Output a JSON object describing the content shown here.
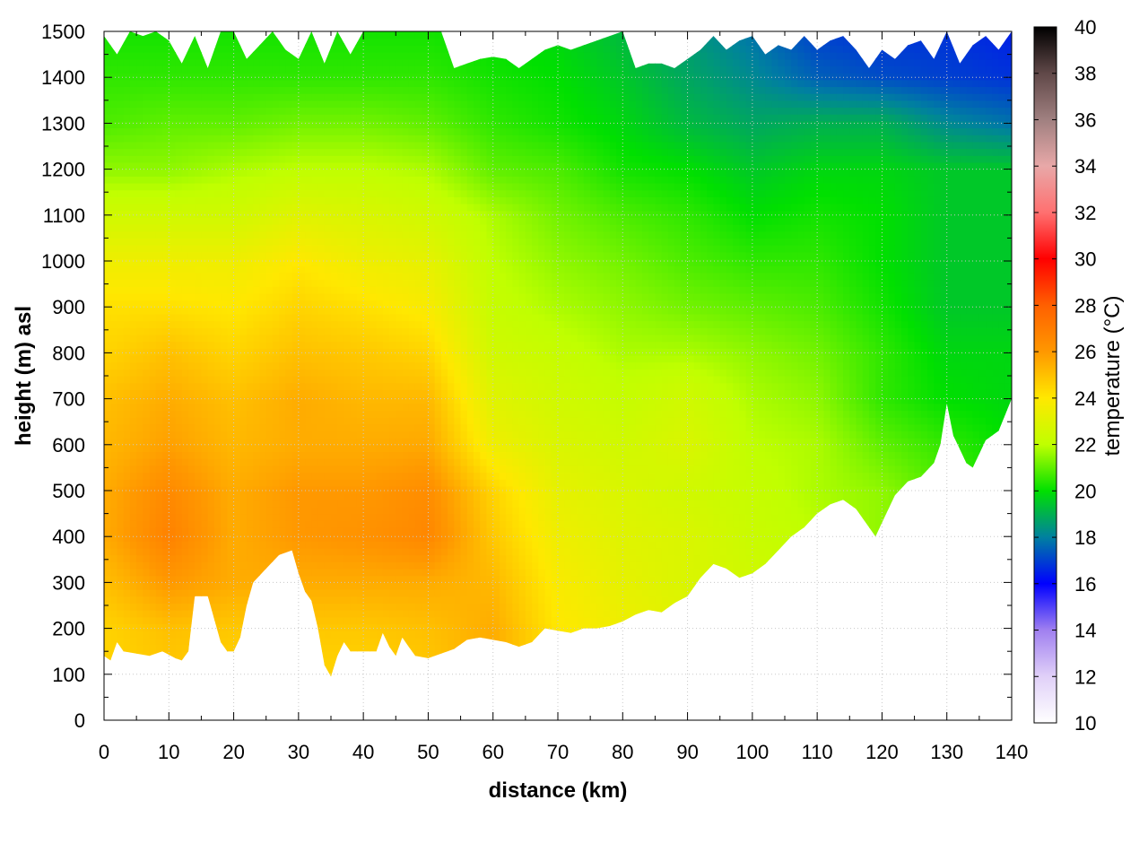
{
  "chart_data": {
    "type": "heatmap",
    "title": "",
    "xlabel": "distance (km)",
    "ylabel": "height (m) asl",
    "colorbar_label": "temperature (°C)",
    "xlim": [
      0,
      140
    ],
    "ylim": [
      0,
      1500
    ],
    "clim": [
      10,
      40
    ],
    "x_ticks": [
      "0",
      "10",
      "20",
      "30",
      "40",
      "50",
      "60",
      "70",
      "80",
      "90",
      "100",
      "110",
      "120",
      "130",
      "140"
    ],
    "y_ticks": [
      "0",
      "100",
      "200",
      "300",
      "400",
      "500",
      "600",
      "700",
      "800",
      "900",
      "1000",
      "1100",
      "1200",
      "1300",
      "1400",
      "1500"
    ],
    "c_ticks": [
      "10",
      "12",
      "14",
      "16",
      "18",
      "20",
      "22",
      "24",
      "26",
      "28",
      "30",
      "32",
      "34",
      "36",
      "38",
      "40"
    ],
    "grid": true,
    "colormap_stops": [
      {
        "value": 10,
        "color": "#ffffff"
      },
      {
        "value": 12,
        "color": "#e0d0f8"
      },
      {
        "value": 14,
        "color": "#a080f0"
      },
      {
        "value": 16,
        "color": "#0000ff"
      },
      {
        "value": 18,
        "color": "#0080a0"
      },
      {
        "value": 20,
        "color": "#00e000"
      },
      {
        "value": 22,
        "color": "#c0ff00"
      },
      {
        "value": 24,
        "color": "#ffe800"
      },
      {
        "value": 26,
        "color": "#ff9800"
      },
      {
        "value": 28,
        "color": "#ff6000"
      },
      {
        "value": 30,
        "color": "#ff0000"
      },
      {
        "value": 32,
        "color": "#ff7070"
      },
      {
        "value": 34,
        "color": "#e8a8a8"
      },
      {
        "value": 36,
        "color": "#a08080"
      },
      {
        "value": 38,
        "color": "#604848"
      },
      {
        "value": 40,
        "color": "#000000"
      }
    ],
    "ground_profile": {
      "x": [
        0,
        1,
        2,
        3,
        5,
        7,
        9,
        11,
        12,
        13,
        14,
        16,
        17,
        18,
        19,
        20,
        21,
        22,
        23,
        25,
        27,
        29,
        30,
        31,
        32,
        33,
        34,
        35,
        36,
        37,
        38,
        40,
        42,
        43,
        44,
        45,
        46,
        47,
        48,
        50,
        52,
        54,
        56,
        58,
        60,
        62,
        64,
        66,
        68,
        70,
        72,
        74,
        76,
        78,
        80,
        82,
        84,
        86,
        88,
        90,
        92,
        94,
        96,
        98,
        100,
        102,
        104,
        106,
        108,
        110,
        112,
        114,
        116,
        118,
        119,
        120,
        122,
        124,
        126,
        128,
        129,
        130,
        131,
        132,
        133,
        134,
        135,
        136,
        138,
        140
      ],
      "y": [
        140,
        130,
        170,
        150,
        145,
        140,
        150,
        135,
        130,
        150,
        270,
        270,
        220,
        170,
        150,
        150,
        180,
        250,
        300,
        330,
        360,
        370,
        320,
        280,
        260,
        200,
        120,
        95,
        140,
        170,
        150,
        150,
        150,
        190,
        160,
        140,
        180,
        160,
        140,
        135,
        145,
        155,
        175,
        180,
        175,
        170,
        160,
        170,
        200,
        195,
        190,
        200,
        200,
        205,
        215,
        230,
        240,
        235,
        255,
        270,
        310,
        340,
        330,
        310,
        320,
        340,
        370,
        400,
        420,
        450,
        470,
        480,
        460,
        420,
        400,
        430,
        490,
        520,
        530,
        560,
        600,
        690,
        620,
        590,
        560,
        550,
        580,
        610,
        630,
        700
      ]
    },
    "top_profile": {
      "x": [
        0,
        2,
        4,
        6,
        8,
        10,
        12,
        14,
        16,
        18,
        20,
        22,
        24,
        26,
        28,
        30,
        32,
        34,
        36,
        38,
        40,
        42,
        44,
        46,
        48,
        50,
        52,
        54,
        56,
        58,
        60,
        62,
        64,
        66,
        68,
        70,
        72,
        74,
        76,
        78,
        80,
        82,
        84,
        86,
        88,
        90,
        92,
        94,
        96,
        98,
        100,
        102,
        104,
        106,
        108,
        110,
        112,
        114,
        116,
        118,
        120,
        122,
        124,
        126,
        128,
        130,
        132,
        134,
        136,
        138,
        140
      ],
      "y": [
        1490,
        1450,
        1500,
        1490,
        1500,
        1480,
        1430,
        1490,
        1420,
        1500,
        1500,
        1440,
        1470,
        1500,
        1460,
        1440,
        1500,
        1430,
        1500,
        1450,
        1500,
        1500,
        1500,
        1500,
        1500,
        1500,
        1500,
        1420,
        1430,
        1440,
        1445,
        1440,
        1420,
        1440,
        1460,
        1470,
        1460,
        1470,
        1480,
        1490,
        1500,
        1420,
        1430,
        1430,
        1420,
        1440,
        1460,
        1490,
        1460,
        1480,
        1490,
        1450,
        1470,
        1460,
        1490,
        1460,
        1480,
        1490,
        1460,
        1420,
        1460,
        1440,
        1470,
        1480,
        1440,
        1500,
        1430,
        1470,
        1490,
        1460,
        1500
      ]
    },
    "temperature_field": {
      "x_km": [
        0,
        10,
        20,
        30,
        40,
        50,
        60,
        70,
        80,
        90,
        100,
        110,
        120,
        130,
        140
      ],
      "z_m": [
        100,
        200,
        300,
        400,
        500,
        600,
        700,
        800,
        900,
        1000,
        1100,
        1200,
        1300,
        1400,
        1500
      ],
      "values_degC": [
        [
          24.5,
          24.8,
          24.5,
          24.5,
          24.5,
          24.8,
          25.5,
          24.0,
          23.5,
          23.0,
          22.5,
          22.0,
          21.5,
          21.0,
          20.5
        ],
        [
          24.5,
          25.0,
          24.8,
          24.8,
          24.8,
          25.0,
          25.5,
          24.0,
          23.5,
          23.0,
          22.5,
          22.0,
          21.5,
          21.0,
          20.5
        ],
        [
          25.0,
          26.0,
          25.5,
          25.5,
          25.5,
          25.5,
          25.2,
          23.8,
          23.2,
          22.8,
          22.5,
          22.0,
          21.5,
          21.0,
          20.5
        ],
        [
          25.5,
          26.8,
          25.5,
          26.0,
          26.2,
          26.6,
          24.8,
          23.5,
          23.0,
          22.8,
          22.3,
          22.0,
          21.5,
          21.0,
          20.5
        ],
        [
          25.5,
          26.5,
          25.5,
          26.0,
          26.0,
          26.4,
          24.5,
          23.2,
          22.8,
          22.5,
          22.2,
          21.8,
          21.5,
          20.8,
          20.2
        ],
        [
          25.2,
          25.8,
          25.2,
          25.5,
          25.5,
          25.6,
          23.5,
          22.8,
          22.5,
          22.8,
          22.0,
          21.8,
          21.0,
          20.5,
          20.0
        ],
        [
          25.0,
          25.5,
          25.0,
          25.5,
          25.2,
          25.2,
          23.0,
          22.5,
          22.2,
          22.5,
          21.8,
          21.5,
          20.5,
          20.0,
          19.8
        ],
        [
          24.5,
          25.0,
          24.5,
          25.0,
          24.8,
          24.5,
          22.5,
          22.2,
          21.8,
          21.8,
          21.5,
          21.2,
          20.5,
          19.8,
          19.8
        ],
        [
          24.2,
          24.2,
          24.0,
          24.5,
          24.2,
          23.8,
          22.2,
          21.8,
          21.5,
          21.2,
          21.0,
          20.8,
          20.2,
          19.5,
          19.5
        ],
        [
          23.5,
          23.5,
          23.5,
          24.0,
          23.5,
          23.2,
          22.0,
          21.5,
          21.2,
          20.8,
          20.5,
          20.5,
          20.0,
          19.5,
          19.5
        ],
        [
          22.5,
          22.5,
          22.5,
          23.0,
          22.8,
          22.5,
          21.8,
          21.2,
          20.8,
          20.5,
          20.0,
          20.2,
          20.0,
          19.5,
          19.5
        ],
        [
          21.5,
          21.5,
          21.8,
          22.0,
          22.0,
          21.8,
          21.0,
          20.8,
          20.2,
          20.0,
          19.5,
          19.8,
          19.8,
          19.5,
          19.5
        ],
        [
          20.8,
          21.0,
          21.0,
          21.2,
          21.2,
          21.0,
          20.5,
          20.2,
          19.8,
          19.2,
          18.8,
          19.0,
          19.0,
          18.2,
          17.8
        ],
        [
          20.5,
          20.5,
          20.5,
          20.5,
          20.5,
          20.5,
          20.2,
          20.0,
          19.5,
          18.8,
          18.2,
          17.5,
          17.2,
          17.0,
          16.8
        ],
        [
          20.2,
          20.2,
          20.2,
          20.2,
          20.2,
          20.2,
          20.0,
          19.8,
          19.2,
          18.5,
          17.8,
          17.0,
          16.8,
          16.8,
          16.5
        ]
      ]
    }
  }
}
